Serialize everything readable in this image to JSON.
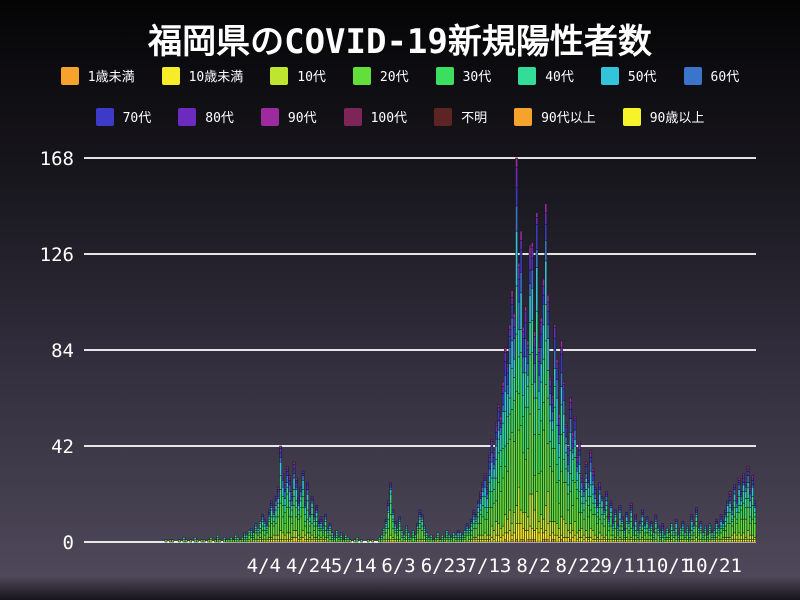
{
  "title": "福岡県のCOVID-19新規陽性者数",
  "legend": {
    "rows": [
      [
        {
          "label": "1歳未満",
          "color": "#F5A32C"
        },
        {
          "label": "10歳未満",
          "color": "#F6EC27"
        },
        {
          "label": "10代",
          "color": "#BEE52F"
        },
        {
          "label": "20代",
          "color": "#63DF3B"
        },
        {
          "label": "30代",
          "color": "#3BDE5F"
        },
        {
          "label": "40代",
          "color": "#33DC99"
        },
        {
          "label": "50代",
          "color": "#33C4DC"
        },
        {
          "label": "60代",
          "color": "#3B74CB"
        }
      ],
      [
        {
          "label": "70代",
          "color": "#3D39C9"
        },
        {
          "label": "80代",
          "color": "#6C2BBE"
        },
        {
          "label": "90代",
          "color": "#9D2B9D"
        },
        {
          "label": "100代",
          "color": "#7E2558"
        },
        {
          "label": "不明",
          "color": "#5E2424"
        },
        {
          "label": "90代以上",
          "color": "#F5A32C"
        },
        {
          "label": "90歳以上",
          "color": "#F7F32A"
        }
      ]
    ]
  },
  "chart_data": {
    "type": "bar",
    "stacked": true,
    "title": "福岡県のCOVID-19新規陽性者数",
    "xlabel": "",
    "ylabel": "",
    "ylim": [
      0,
      168
    ],
    "y_ticks": [
      0,
      42,
      84,
      126,
      168
    ],
    "y_tick_labels": [
      "0",
      "42",
      "84",
      "126",
      "168"
    ],
    "grid": true,
    "grid_color": "#ffffff",
    "text_color": "#ffffff",
    "legend_position": "top",
    "x_start_date": "1/15",
    "x_end_date": "11/8",
    "x_tick_labels": [
      "4/4",
      "4/24",
      "5/14",
      "6/3",
      "6/23",
      "7/13",
      "8/2",
      "8/22",
      "9/11",
      "10/1",
      "10/21"
    ],
    "x_tick_day_indices": [
      80,
      100,
      120,
      140,
      160,
      180,
      200,
      220,
      240,
      260,
      280
    ],
    "series": [
      {
        "name": "1歳未満",
        "color": "#F5A32C",
        "share": 0.005
      },
      {
        "name": "10歳未満",
        "color": "#F6EC27",
        "share": 0.04
      },
      {
        "name": "10代",
        "color": "#BEE52F",
        "share": 0.08
      },
      {
        "name": "20代",
        "color": "#63DF3B",
        "share": 0.28
      },
      {
        "name": "30代",
        "color": "#3BDE5F",
        "share": 0.16
      },
      {
        "name": "40代",
        "color": "#33DC99",
        "share": 0.13
      },
      {
        "name": "50代",
        "color": "#33C4DC",
        "share": 0.11
      },
      {
        "name": "60代",
        "color": "#3B74CB",
        "share": 0.07
      },
      {
        "name": "70代",
        "color": "#3D39C9",
        "share": 0.06
      },
      {
        "name": "80代",
        "color": "#6C2BBE",
        "share": 0.04
      },
      {
        "name": "90代",
        "color": "#9D2B9D",
        "share": 0.02
      },
      {
        "name": "100代",
        "color": "#7E2558",
        "share": 0.003
      },
      {
        "name": "不明",
        "color": "#5E2424",
        "share": 0.002
      }
    ],
    "share_jitter": 0.9,
    "daily_totals": [
      0,
      0,
      0,
      0,
      0,
      0,
      0,
      0,
      0,
      0,
      0,
      0,
      0,
      0,
      0,
      0,
      0,
      0,
      0,
      0,
      0,
      0,
      0,
      0,
      0,
      0,
      0,
      0,
      0,
      0,
      0,
      0,
      0,
      0,
      0,
      0,
      1,
      0,
      1,
      1,
      0,
      0,
      1,
      0,
      2,
      1,
      0,
      1,
      0,
      2,
      1,
      0,
      1,
      1,
      0,
      1,
      2,
      0,
      1,
      3,
      1,
      0,
      2,
      1,
      1,
      2,
      1,
      3,
      2,
      1,
      2,
      4,
      3,
      5,
      6,
      4,
      8,
      6,
      9,
      12,
      10,
      8,
      14,
      18,
      16,
      20,
      24,
      42,
      30,
      26,
      33,
      29,
      22,
      35,
      28,
      19,
      24,
      31,
      18,
      26,
      14,
      20,
      12,
      16,
      9,
      11,
      7,
      12,
      6,
      8,
      4,
      3,
      5,
      2,
      4,
      1,
      3,
      2,
      1,
      0,
      1,
      2,
      0,
      1,
      0,
      0,
      1,
      0,
      1,
      0,
      0,
      2,
      3,
      6,
      10,
      18,
      26,
      14,
      9,
      6,
      11,
      5,
      3,
      7,
      4,
      2,
      5,
      3,
      8,
      14,
      12,
      7,
      4,
      2,
      3,
      1,
      2,
      4,
      1,
      3,
      2,
      5,
      3,
      2,
      4,
      3,
      5,
      4,
      3,
      5,
      8,
      6,
      10,
      14,
      12,
      18,
      22,
      26,
      30,
      25,
      38,
      45,
      40,
      52,
      60,
      55,
      70,
      85,
      78,
      95,
      110,
      100,
      168,
      122,
      136,
      94,
      103,
      88,
      130,
      131,
      92,
      144,
      85,
      98,
      115,
      148,
      108,
      72,
      64,
      95,
      80,
      56,
      88,
      70,
      52,
      42,
      63,
      48,
      55,
      38,
      44,
      30,
      26,
      35,
      28,
      40,
      32,
      24,
      18,
      26,
      20,
      15,
      22,
      12,
      18,
      10,
      14,
      8,
      16,
      11,
      6,
      13,
      9,
      17,
      7,
      12,
      5,
      9,
      14,
      8,
      11,
      6,
      9,
      4,
      12,
      7,
      5,
      8,
      3,
      6,
      4,
      8,
      5,
      10,
      3,
      6,
      9,
      4,
      7,
      5,
      12,
      8,
      15,
      6,
      9,
      4,
      7,
      3,
      8,
      5,
      6,
      10,
      7,
      12,
      9,
      14,
      18,
      22,
      16,
      25,
      20,
      28,
      22,
      30,
      26,
      33,
      24,
      29,
      18
    ]
  }
}
